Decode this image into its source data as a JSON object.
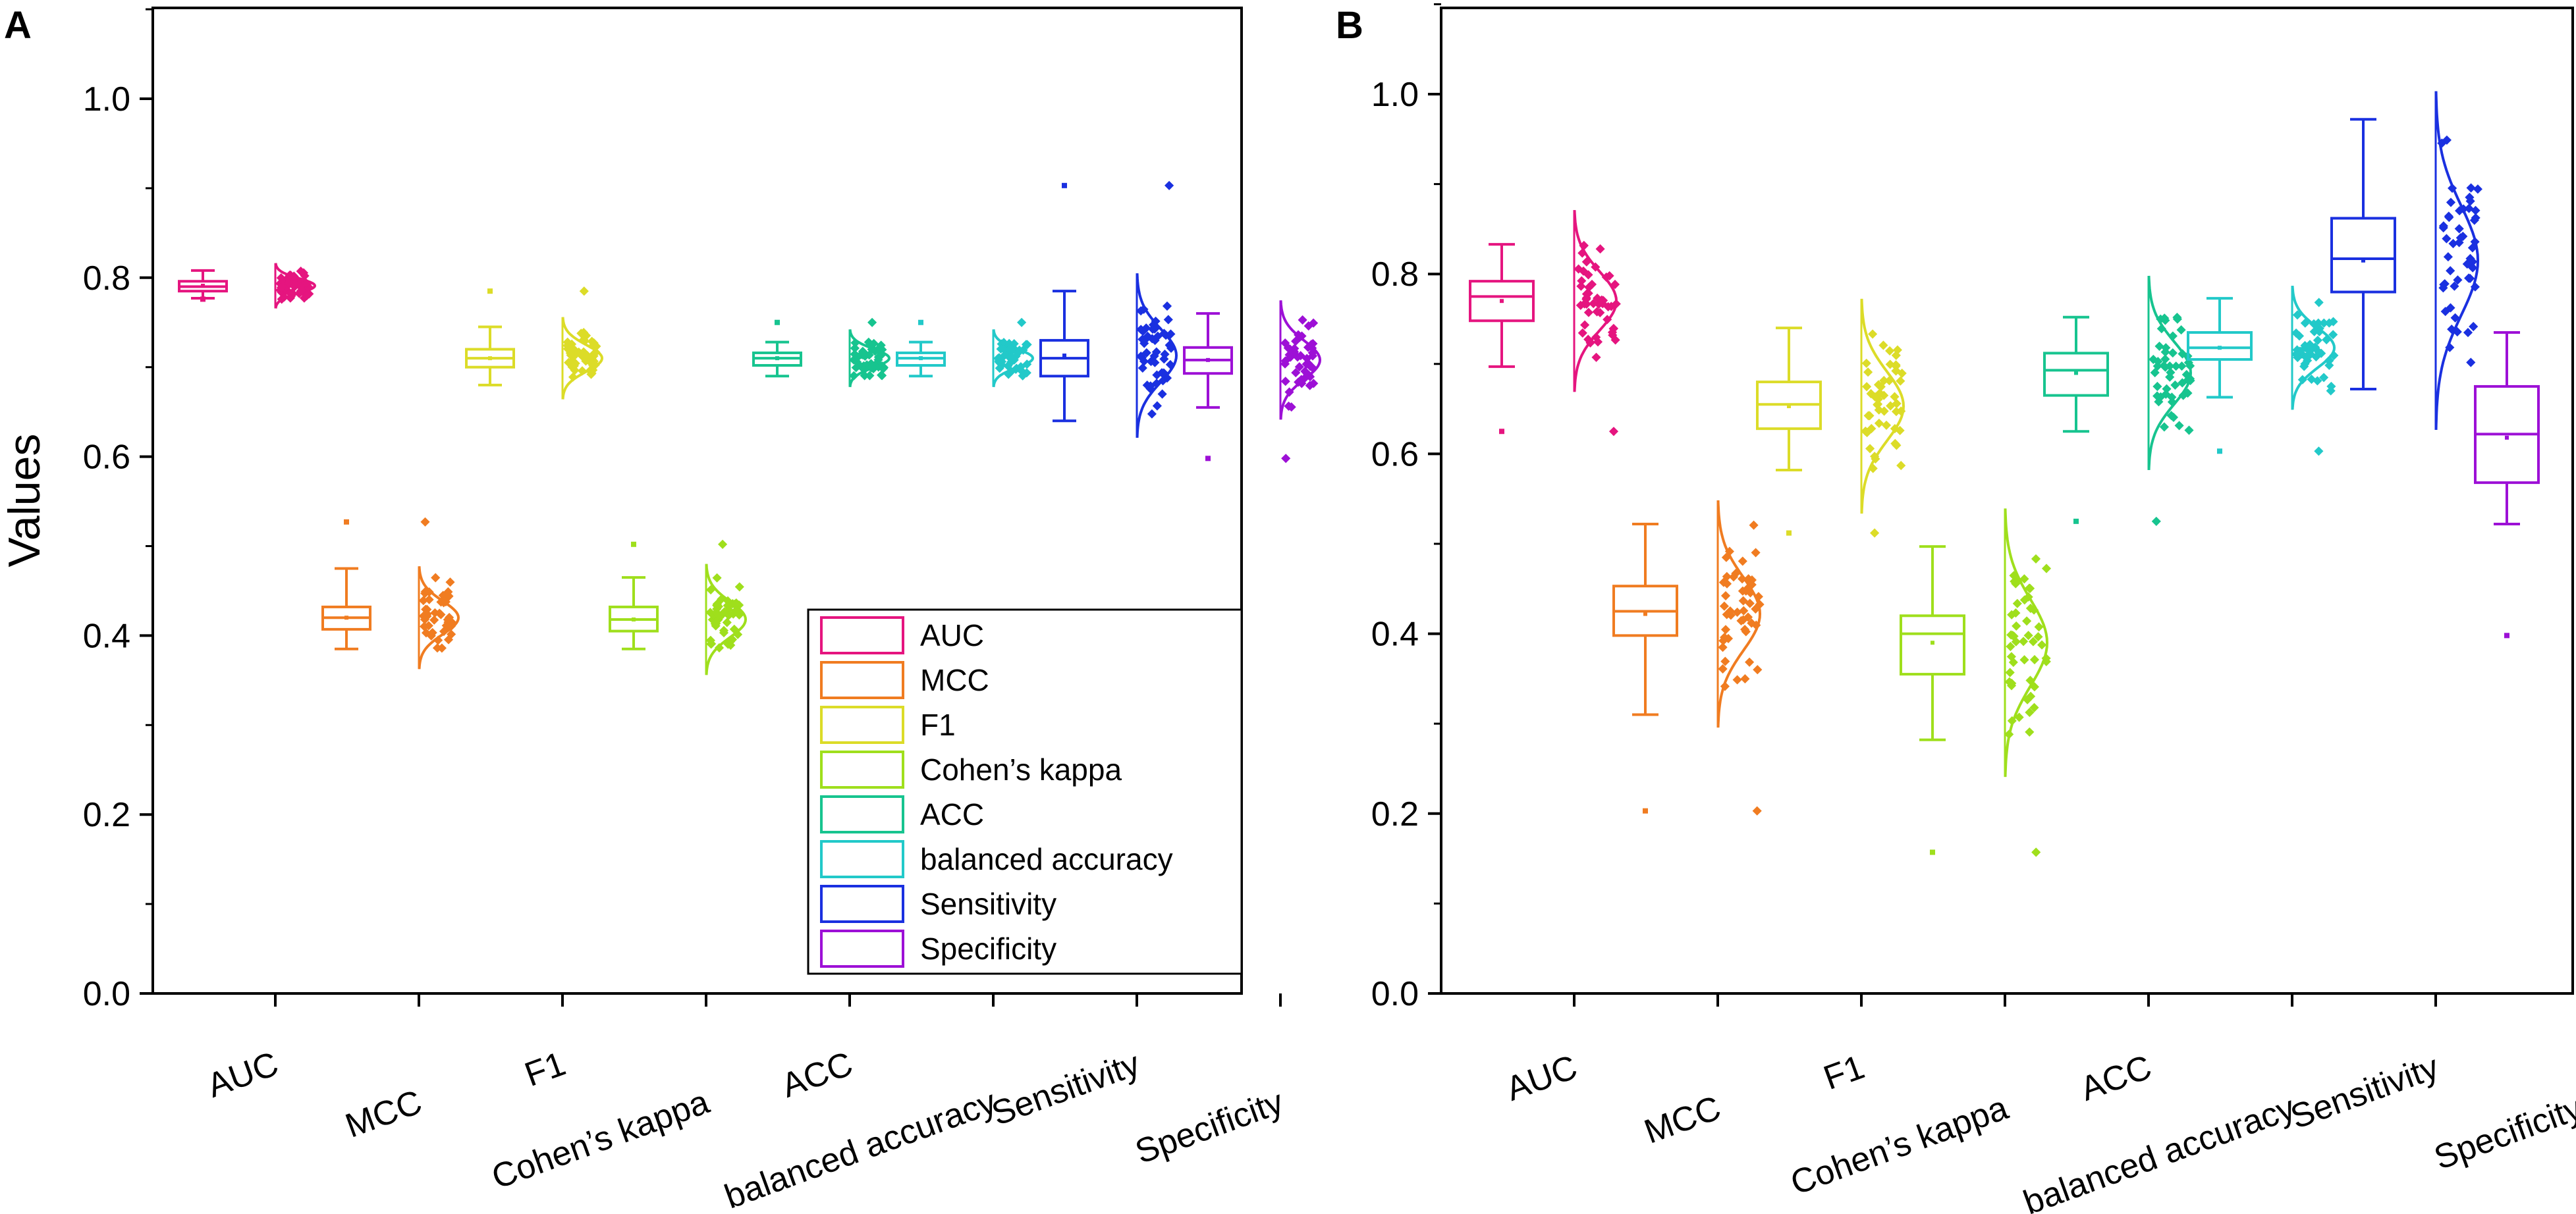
{
  "figure": {
    "colors": {
      "AUC": "#e5157f",
      "MCC": "#f07c21",
      "F1": "#dcdc28",
      "Cohen’s kappa": "#9fdf1c",
      "ACC": "#17c48f",
      "balanced accuracy": "#22c9c9",
      "Sensitivity": "#1a30e0",
      "Specificity": "#9d10d6"
    }
  },
  "chart_data": [
    {
      "type": "boxplot",
      "panel": "A",
      "title": "",
      "ylabel": "Values",
      "xlabel": "",
      "ylim": [
        0.0,
        1.1
      ],
      "yticks": [
        "0.0",
        "0.2",
        "0.4",
        "0.6",
        "0.8",
        "1.0"
      ],
      "grid": false,
      "legend": {
        "position": "bottom-right",
        "entries": [
          "AUC",
          "MCC",
          "F1",
          "Cohen’s kappa",
          "ACC",
          "balanced accuracy",
          "Sensitivity",
          "Specificity"
        ]
      },
      "categories": [
        "AUC",
        "MCC",
        "F1",
        "Cohen’s kappa",
        "ACC",
        "balanced accuracy",
        "Sensitivity",
        "Specificity"
      ],
      "series": [
        {
          "name": "AUC",
          "min": 0.777,
          "q1": 0.785,
          "median": 0.79,
          "q3": 0.796,
          "max": 0.808,
          "mean": 0.791,
          "outliers_low": [
            0.776
          ],
          "outliers_high": []
        },
        {
          "name": "MCC",
          "min": 0.385,
          "q1": 0.407,
          "median": 0.42,
          "q3": 0.432,
          "max": 0.475,
          "mean": 0.42,
          "outliers_low": [],
          "outliers_high": [
            0.527
          ]
        },
        {
          "name": "F1",
          "min": 0.68,
          "q1": 0.7,
          "median": 0.71,
          "q3": 0.72,
          "max": 0.745,
          "mean": 0.71,
          "outliers_low": [],
          "outliers_high": [
            0.785
          ]
        },
        {
          "name": "Cohen’s kappa",
          "min": 0.385,
          "q1": 0.405,
          "median": 0.418,
          "q3": 0.432,
          "max": 0.465,
          "mean": 0.418,
          "outliers_low": [],
          "outliers_high": [
            0.502
          ]
        },
        {
          "name": "ACC",
          "min": 0.69,
          "q1": 0.702,
          "median": 0.71,
          "q3": 0.716,
          "max": 0.728,
          "mean": 0.71,
          "outliers_low": [],
          "outliers_high": [
            0.75
          ]
        },
        {
          "name": "balanced accuracy",
          "min": 0.69,
          "q1": 0.702,
          "median": 0.71,
          "q3": 0.716,
          "max": 0.728,
          "mean": 0.71,
          "outliers_low": [],
          "outliers_high": [
            0.75
          ]
        },
        {
          "name": "Sensitivity",
          "min": 0.64,
          "q1": 0.69,
          "median": 0.71,
          "q3": 0.73,
          "max": 0.785,
          "mean": 0.713,
          "outliers_low": [],
          "outliers_high": [
            0.903
          ]
        },
        {
          "name": "Specificity",
          "min": 0.655,
          "q1": 0.693,
          "median": 0.708,
          "q3": 0.722,
          "max": 0.76,
          "mean": 0.708,
          "outliers_low": [
            0.598
          ],
          "outliers_high": []
        }
      ]
    },
    {
      "type": "boxplot",
      "panel": "B",
      "title": "",
      "ylabel": "",
      "xlabel": "",
      "ylim": [
        0.0,
        1.1
      ],
      "yticks": [
        "0.0",
        "0.2",
        "0.4",
        "0.6",
        "0.8",
        "1.0"
      ],
      "grid": false,
      "categories": [
        "AUC",
        "MCC",
        "F1",
        "Cohen’s kappa",
        "ACC",
        "balanced accuracy",
        "Sensitivity",
        "Specificity"
      ],
      "series": [
        {
          "name": "AUC",
          "min": 0.697,
          "q1": 0.748,
          "median": 0.775,
          "q3": 0.792,
          "max": 0.833,
          "mean": 0.77,
          "outliers_low": [
            0.625
          ],
          "outliers_high": []
        },
        {
          "name": "MCC",
          "min": 0.31,
          "q1": 0.398,
          "median": 0.425,
          "q3": 0.453,
          "max": 0.522,
          "mean": 0.422,
          "outliers_low": [
            0.203
          ],
          "outliers_high": []
        },
        {
          "name": "F1",
          "min": 0.582,
          "q1": 0.628,
          "median": 0.655,
          "q3": 0.68,
          "max": 0.74,
          "mean": 0.653,
          "outliers_low": [
            0.512
          ],
          "outliers_high": []
        },
        {
          "name": "Cohen’s kappa",
          "min": 0.282,
          "q1": 0.355,
          "median": 0.4,
          "q3": 0.42,
          "max": 0.497,
          "mean": 0.39,
          "outliers_low": [
            0.157
          ],
          "outliers_high": []
        },
        {
          "name": "ACC",
          "min": 0.625,
          "q1": 0.665,
          "median": 0.693,
          "q3": 0.712,
          "max": 0.752,
          "mean": 0.69,
          "outliers_low": [
            0.525
          ],
          "outliers_high": []
        },
        {
          "name": "balanced accuracy",
          "min": 0.663,
          "q1": 0.705,
          "median": 0.718,
          "q3": 0.735,
          "max": 0.773,
          "mean": 0.718,
          "outliers_low": [
            0.603
          ],
          "outliers_high": []
        },
        {
          "name": "Sensitivity",
          "min": 0.672,
          "q1": 0.78,
          "median": 0.817,
          "q3": 0.862,
          "max": 0.972,
          "mean": 0.815,
          "outliers_low": [],
          "outliers_high": []
        },
        {
          "name": "Specificity",
          "min": 0.522,
          "q1": 0.568,
          "median": 0.622,
          "q3": 0.675,
          "max": 0.735,
          "mean": 0.618,
          "outliers_low": [
            0.398
          ],
          "outliers_high": []
        }
      ]
    }
  ],
  "panels": [
    {
      "label": "A"
    },
    {
      "label": "B"
    }
  ]
}
